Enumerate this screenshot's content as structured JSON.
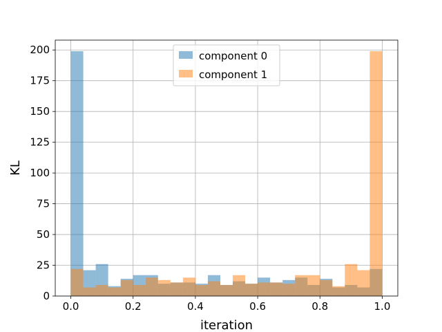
{
  "chart_data": {
    "type": "bar",
    "subtype": "overlapping-histogram",
    "xlabel": "iteration",
    "ylabel": "KL",
    "xlim": [
      -0.05,
      1.05
    ],
    "ylim": [
      0,
      208
    ],
    "xticks": [
      0.0,
      0.2,
      0.4,
      0.6,
      0.8,
      1.0
    ],
    "xtick_labels": [
      "0.0",
      "0.2",
      "0.4",
      "0.6",
      "0.8",
      "1.0"
    ],
    "yticks": [
      0,
      25,
      50,
      75,
      100,
      125,
      150,
      175,
      200
    ],
    "ytick_labels": [
      "0",
      "25",
      "50",
      "75",
      "100",
      "125",
      "150",
      "175",
      "200"
    ],
    "grid": true,
    "legend_position": "top-center",
    "bin_edges": [
      0,
      0.04,
      0.08,
      0.12,
      0.16,
      0.2,
      0.24,
      0.28,
      0.32,
      0.36,
      0.4,
      0.44,
      0.48,
      0.52,
      0.56,
      0.6,
      0.64,
      0.68,
      0.72,
      0.76,
      0.8,
      0.84,
      0.88,
      0.92,
      0.96,
      1.0
    ],
    "series": [
      {
        "name": "component 0",
        "color": "#1f77b4",
        "values": [
          199,
          21,
          26,
          8,
          14,
          17,
          17,
          10,
          11,
          11,
          10,
          17,
          9,
          12,
          10,
          15,
          11,
          13,
          15,
          9,
          14,
          7,
          9,
          7,
          22
        ]
      },
      {
        "name": "component 1",
        "color": "#ff7f0e",
        "values": [
          22,
          7,
          9,
          7,
          13,
          9,
          15,
          13,
          11,
          15,
          9,
          12,
          9,
          17,
          10,
          11,
          11,
          10,
          17,
          17,
          13,
          8,
          26,
          21,
          199
        ]
      }
    ]
  }
}
